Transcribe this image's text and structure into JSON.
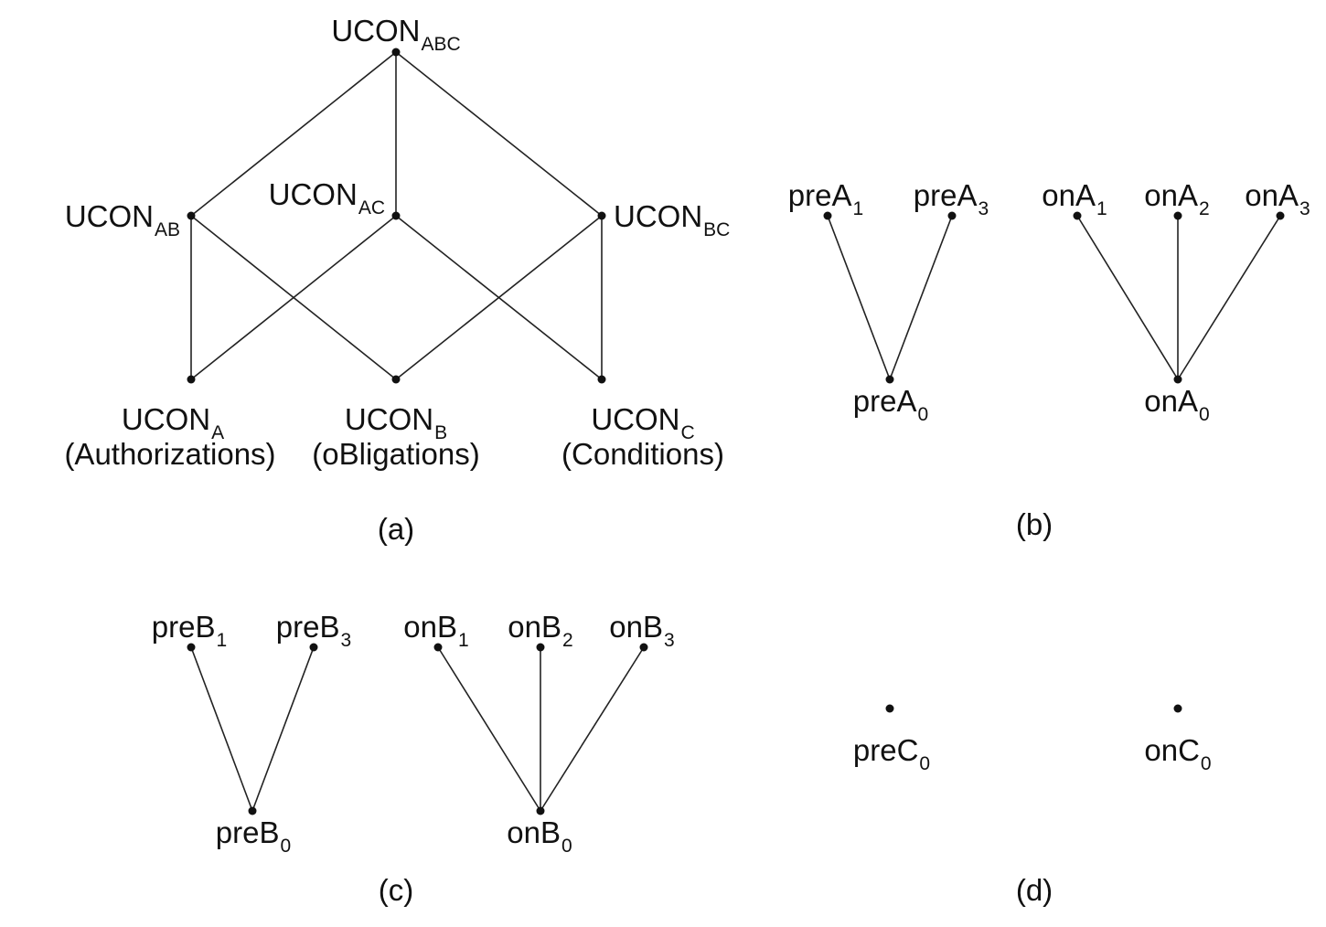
{
  "colors": {
    "ink": "#111111",
    "background": "#ffffff"
  },
  "panel_a": {
    "caption": "(a)",
    "nodes": {
      "abc": {
        "base": "UCON",
        "sub": "ABC"
      },
      "ab": {
        "base": "UCON",
        "sub": "AB"
      },
      "ac": {
        "base": "UCON",
        "sub": "AC"
      },
      "bc": {
        "base": "UCON",
        "sub": "BC"
      },
      "a": {
        "base": "UCON",
        "sub": "A",
        "desc": "(Authorizations)"
      },
      "b": {
        "base": "UCON",
        "sub": "B",
        "desc": "(oBligations)"
      },
      "c": {
        "base": "UCON",
        "sub": "C",
        "desc": "(Conditions)"
      }
    },
    "edges": [
      [
        "abc",
        "ab"
      ],
      [
        "abc",
        "ac"
      ],
      [
        "abc",
        "bc"
      ],
      [
        "ab",
        "a"
      ],
      [
        "ab",
        "b"
      ],
      [
        "ac",
        "a"
      ],
      [
        "ac",
        "c"
      ],
      [
        "bc",
        "b"
      ],
      [
        "bc",
        "c"
      ]
    ]
  },
  "panel_b": {
    "caption": "(b)",
    "nodes": {
      "pre1": {
        "base": "preA",
        "sub": "1"
      },
      "pre3": {
        "base": "preA",
        "sub": "3"
      },
      "pre0": {
        "base": "preA",
        "sub": "0"
      },
      "on1": {
        "base": "onA",
        "sub": "1"
      },
      "on2": {
        "base": "onA",
        "sub": "2"
      },
      "on3": {
        "base": "onA",
        "sub": "3"
      },
      "on0": {
        "base": "onA",
        "sub": "0"
      }
    },
    "edges": [
      [
        "pre1",
        "pre0"
      ],
      [
        "pre3",
        "pre0"
      ],
      [
        "on1",
        "on0"
      ],
      [
        "on2",
        "on0"
      ],
      [
        "on3",
        "on0"
      ]
    ]
  },
  "panel_c": {
    "caption": "(c)",
    "nodes": {
      "pre1": {
        "base": "preB",
        "sub": "1"
      },
      "pre3": {
        "base": "preB",
        "sub": "3"
      },
      "pre0": {
        "base": "preB",
        "sub": "0"
      },
      "on1": {
        "base": "onB",
        "sub": "1"
      },
      "on2": {
        "base": "onB",
        "sub": "2"
      },
      "on3": {
        "base": "onB",
        "sub": "3"
      },
      "on0": {
        "base": "onB",
        "sub": "0"
      }
    },
    "edges": [
      [
        "pre1",
        "pre0"
      ],
      [
        "pre3",
        "pre0"
      ],
      [
        "on1",
        "on0"
      ],
      [
        "on2",
        "on0"
      ],
      [
        "on3",
        "on0"
      ]
    ]
  },
  "panel_d": {
    "caption": "(d)",
    "nodes": {
      "pre0": {
        "base": "preC",
        "sub": "0"
      },
      "on0": {
        "base": "onC",
        "sub": "0"
      }
    },
    "edges": []
  }
}
